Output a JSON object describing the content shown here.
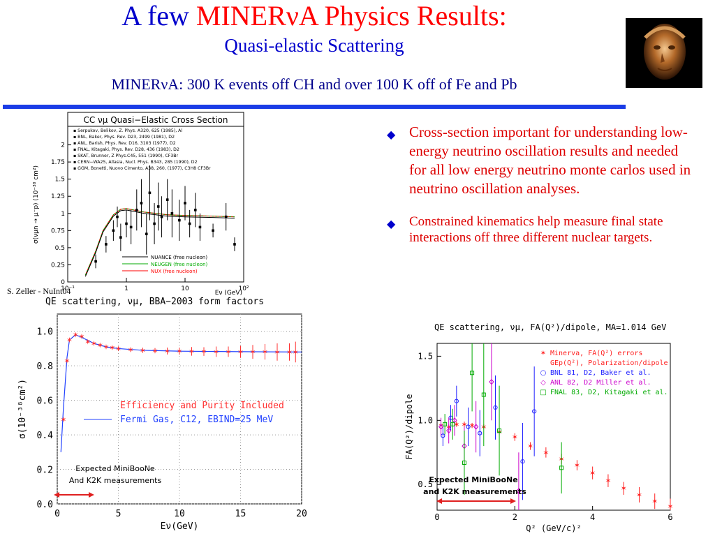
{
  "header": {
    "title_a": "A few ",
    "title_b": "MINERνA Physics Results:",
    "subtitle": "Quasi-elastic Scattering",
    "tagline": "MINERνA: 300 K events off CH and over 100 K off of Fe and Pb"
  },
  "bullets": [
    "Cross-section important for understanding low-energy neutrino oscillation results and needed for all low energy neutrino monte carlos used in neutrino oscillation analyses.",
    "Constrained kinematics help measure final state interactions off three different nuclear targets."
  ],
  "colors": {
    "title_blue": "#0000cc",
    "accent_red": "#ff0000",
    "rule_blue": "#1a3ce6",
    "bullet_red": "#dd0000"
  },
  "credit": "S. Zeller - NuInt04",
  "chart_data": [
    {
      "type": "scatter",
      "title": "CC νμ Quasi−Elastic Cross Section",
      "ylabel": "σ(νμn → μ⁻p) (10⁻³⁸ cm²)",
      "xlabel": "Eν (GeV)",
      "x_scale": "log",
      "xlim": [
        0.1,
        100
      ],
      "ylim": [
        0,
        2.25
      ],
      "yticks": [
        "0",
        "0.25",
        "0.5",
        "0.75",
        "1",
        "1.25",
        "1.5",
        "1.75",
        "2"
      ],
      "xticks": [
        "10⁻¹",
        "1",
        "10",
        "10²"
      ],
      "legend_refs": [
        "Serpukov, Belikov, Z. Phys. A320, 625 (1985), Al",
        "BNL, Baker, Phys. Rev. D23, 2499 (1981), D2",
        "ANL, Barish, Phys. Rev. D16, 3103 (1977), D2",
        "FNAL, Kitagaki, Phys. Rev. D28, 436 (1983), D2",
        "SKAT, Brunner, Z Phys.C45, 551 (1990), CF3Br",
        "CERN−WA25, Allasia, Nucl. Phys. B343, 285 (1990), D2",
        "GGM, Bonetti, Nuovo Cimento, A38, 260, (1977), C3H8 CF3Br"
      ],
      "series": [
        {
          "name": "NUANCE (free nucleon)",
          "color": "#000000"
        },
        {
          "name": "NEUGEN (free nucleon)",
          "color": "#00aa00"
        },
        {
          "name": "NUX (free nucleon)",
          "color": "#ff0000"
        }
      ],
      "curve": {
        "x": [
          0.2,
          0.3,
          0.4,
          0.6,
          0.8,
          1.0,
          2,
          5,
          10,
          30,
          70
        ],
        "y": [
          0.1,
          0.45,
          0.75,
          0.98,
          1.06,
          1.07,
          1.02,
          0.98,
          0.97,
          0.96,
          0.95
        ]
      },
      "points": [
        {
          "x": 0.3,
          "y": 0.3,
          "e": 0.1
        },
        {
          "x": 0.45,
          "y": 0.55,
          "e": 0.12
        },
        {
          "x": 0.6,
          "y": 0.75,
          "e": 0.15
        },
        {
          "x": 0.7,
          "y": 0.95,
          "e": 0.15
        },
        {
          "x": 0.8,
          "y": 0.65,
          "e": 0.2
        },
        {
          "x": 1.0,
          "y": 0.85,
          "e": 0.2
        },
        {
          "x": 1.2,
          "y": 0.8,
          "e": 0.25
        },
        {
          "x": 1.5,
          "y": 1.05,
          "e": 0.3
        },
        {
          "x": 1.8,
          "y": 1.15,
          "e": 0.35
        },
        {
          "x": 2.2,
          "y": 0.7,
          "e": 0.3
        },
        {
          "x": 2.5,
          "y": 1.3,
          "e": 0.4
        },
        {
          "x": 3.0,
          "y": 0.85,
          "e": 0.3
        },
        {
          "x": 3.5,
          "y": 1.1,
          "e": 0.35
        },
        {
          "x": 4.0,
          "y": 0.95,
          "e": 0.3
        },
        {
          "x": 5.0,
          "y": 1.2,
          "e": 0.3
        },
        {
          "x": 6.0,
          "y": 1.0,
          "e": 0.35
        },
        {
          "x": 8.0,
          "y": 0.9,
          "e": 0.3
        },
        {
          "x": 10.0,
          "y": 1.15,
          "e": 0.25
        },
        {
          "x": 12.0,
          "y": 0.85,
          "e": 0.2
        },
        {
          "x": 15.0,
          "y": 1.05,
          "e": 0.25
        },
        {
          "x": 18.0,
          "y": 0.8,
          "e": 0.2
        },
        {
          "x": 30.0,
          "y": 0.75,
          "e": 0.1
        },
        {
          "x": 50.0,
          "y": 0.95,
          "e": 0.2
        },
        {
          "x": 70.0,
          "y": 0.55,
          "e": 0.1
        }
      ]
    },
    {
      "type": "line",
      "title": "QE scattering, νμ, BBA−2003 form factors",
      "xlabel": "Eν(GeV)",
      "ylabel": "σ(10⁻³⁸cm²)",
      "xlim": [
        0,
        20
      ],
      "ylim": [
        0,
        1.1
      ],
      "xticks": [
        "0",
        "5",
        "10",
        "15",
        "20"
      ],
      "yticks": [
        "0.0",
        "0.2",
        "0.4",
        "0.6",
        "0.8",
        "1.0"
      ],
      "series": [
        {
          "name": "Efficiency and Purity Included",
          "color": "#ff3030",
          "x": [
            0.5,
            0.8,
            1.0,
            1.5,
            2.0,
            2.5,
            3.0,
            3.5,
            4.0,
            4.5,
            5.0,
            6.0,
            7.0,
            8.0,
            9.0,
            10,
            11,
            12,
            13,
            14,
            15,
            16,
            17,
            18,
            19,
            19.5
          ],
          "y": [
            0.49,
            0.83,
            0.95,
            0.98,
            0.97,
            0.94,
            0.93,
            0.92,
            0.91,
            0.905,
            0.9,
            0.893,
            0.89,
            0.888,
            0.886,
            0.885,
            0.884,
            0.883,
            0.882,
            0.882,
            0.881,
            0.881,
            0.881,
            0.88,
            0.88,
            0.88
          ],
          "err": [
            0.01,
            0.01,
            0.01,
            0.01,
            0.01,
            0.01,
            0.01,
            0.01,
            0.01,
            0.01,
            0.012,
            0.012,
            0.015,
            0.015,
            0.02,
            0.02,
            0.025,
            0.025,
            0.03,
            0.03,
            0.035,
            0.04,
            0.045,
            0.05,
            0.05,
            0.06
          ]
        },
        {
          "name": "Fermi Gas, C12, EBIND=25 MeV",
          "color": "#2040ff",
          "x": [
            0.3,
            0.5,
            0.8,
            1.0,
            1.5,
            2.0,
            3.0,
            4.0,
            5.0,
            7.0,
            10,
            15,
            20
          ],
          "y": [
            0.3,
            0.55,
            0.85,
            0.95,
            0.98,
            0.965,
            0.93,
            0.91,
            0.9,
            0.89,
            0.885,
            0.882,
            0.88
          ]
        }
      ],
      "annotation": [
        "Expected MiniBooNe",
        "And K2K measurements"
      ]
    },
    {
      "type": "scatter",
      "title": "QE scattering, νμ, FA(Q²)/dipole, MA=1.014 GeV",
      "xlabel": "Q² (GeV/c)²",
      "ylabel": "FA(Q²)/dipole",
      "xlim": [
        0,
        6
      ],
      "ylim": [
        0.3,
        1.6
      ],
      "xticks": [
        "0",
        "2",
        "4",
        "6"
      ],
      "yticks": [
        "0.5",
        "1.0",
        "1.5"
      ],
      "legend": [
        "Minerva, FA(Q²) errors",
        "GEp(Q²), Polarization/dipole",
        "BNL 81, D2, Baker et al.",
        "ANL 82, D2 Miller et al.",
        "FNAL 83, D2, Kitagaki et al."
      ],
      "series": [
        {
          "name": "Minerva",
          "color": "#ff2020",
          "marker": "x",
          "x": [
            0.1,
            0.3,
            0.5,
            0.7,
            0.9,
            1.2,
            1.6,
            2.0,
            2.4,
            2.8,
            3.2,
            3.6,
            4.0,
            4.4,
            4.8,
            5.2,
            5.6,
            6.0
          ],
          "y": [
            0.96,
            0.95,
            0.97,
            0.97,
            0.96,
            0.95,
            0.91,
            0.87,
            0.8,
            0.75,
            0.7,
            0.65,
            0.59,
            0.53,
            0.47,
            0.42,
            0.37,
            0.33
          ],
          "err": [
            0.02,
            0.02,
            0.02,
            0.02,
            0.02,
            0.02,
            0.02,
            0.03,
            0.03,
            0.04,
            0.04,
            0.04,
            0.05,
            0.05,
            0.05,
            0.06,
            0.06,
            0.06
          ]
        },
        {
          "name": "BNL 81",
          "color": "#2020ff",
          "marker": "o",
          "x": [
            0.15,
            0.35,
            0.5,
            0.8,
            1.1,
            1.5,
            2.2,
            2.5
          ],
          "y": [
            0.88,
            1.02,
            1.15,
            0.95,
            0.9,
            1.1,
            0.68,
            1.07
          ],
          "err": [
            0.08,
            0.1,
            0.12,
            0.15,
            0.18,
            0.25,
            0.3,
            0.35
          ]
        },
        {
          "name": "ANL 82",
          "color": "#cc00cc",
          "marker": "d",
          "x": [
            0.1,
            0.3,
            0.45,
            0.7,
            1.0,
            1.4,
            2.1
          ],
          "y": [
            0.95,
            0.92,
            1.0,
            0.8,
            0.95,
            1.3,
            0.45
          ],
          "err": [
            0.07,
            0.1,
            0.12,
            0.15,
            0.2,
            0.3,
            0.3
          ]
        },
        {
          "name": "FNAL 83",
          "color": "#00aa00",
          "marker": "s",
          "x": [
            0.2,
            0.4,
            0.7,
            0.9,
            1.2,
            1.6,
            3.2
          ],
          "y": [
            0.97,
            0.97,
            0.67,
            1.37,
            1.2,
            0.92,
            0.63
          ],
          "err": [
            0.08,
            0.12,
            0.25,
            0.3,
            0.4,
            0.35,
            0.2
          ]
        }
      ],
      "annotation": [
        "Expected MiniBooNe",
        "and K2K measurements"
      ]
    }
  ]
}
